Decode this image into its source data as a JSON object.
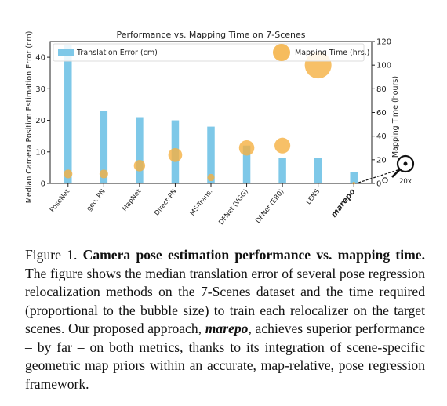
{
  "chart_data": {
    "type": "bar",
    "title": "Performance vs. Mapping Time on 7-Scenes",
    "ylabel": "Median Camera Position Estimation Error (cm)",
    "y2label": "Mapping Time (hours)",
    "ylim": [
      0,
      45
    ],
    "y2lim": [
      0,
      120
    ],
    "yticks": [
      0,
      10,
      20,
      30,
      40
    ],
    "y2ticks": [
      0,
      20,
      40,
      60,
      80,
      100,
      120
    ],
    "grid": false,
    "legend_placement": "top-left",
    "categories": [
      "PoseNet",
      "geo. PN",
      "MapNet",
      "Direct-PN",
      "MS-Trans.",
      "DFNet (VGG)",
      "DFNet (EB0)",
      "LENS",
      "marepo"
    ],
    "highlight_category": "marepo",
    "series": [
      {
        "name": "Translation Error (cm)",
        "kind": "bar",
        "axis": "left",
        "color": "#7ec8e8",
        "values": [
          44,
          23,
          21,
          20,
          18,
          12,
          8,
          8,
          3.5
        ]
      },
      {
        "name": "Mapping Time (hrs.)",
        "kind": "bubble",
        "axis": "right",
        "color": "#f5b041",
        "values": [
          8,
          8,
          15,
          24,
          5,
          30,
          32,
          100,
          0.2
        ]
      }
    ],
    "annotations": [
      {
        "type": "bubble-legend-sample",
        "label": "Mapping Time (hrs.)",
        "value": 110
      },
      {
        "type": "magnifier",
        "target": "marepo",
        "label": "20x"
      }
    ]
  },
  "caption": {
    "label": "Figure 1.",
    "title": "Camera pose estimation performance vs. mapping time.",
    "text_before": "The figure shows the median translation error of several pose regression relocalization methods on the 7-Scenes dataset and the time required (proportional to the bubble size) to train each relocalizer on the target scenes. Our proposed approach,",
    "emphasis": "marepo",
    "text_after": ", achieves superior performance – by far – on both metrics, thanks to its integration of scene-specific geometric map priors within an accurate, map-relative, pose regression framework."
  }
}
